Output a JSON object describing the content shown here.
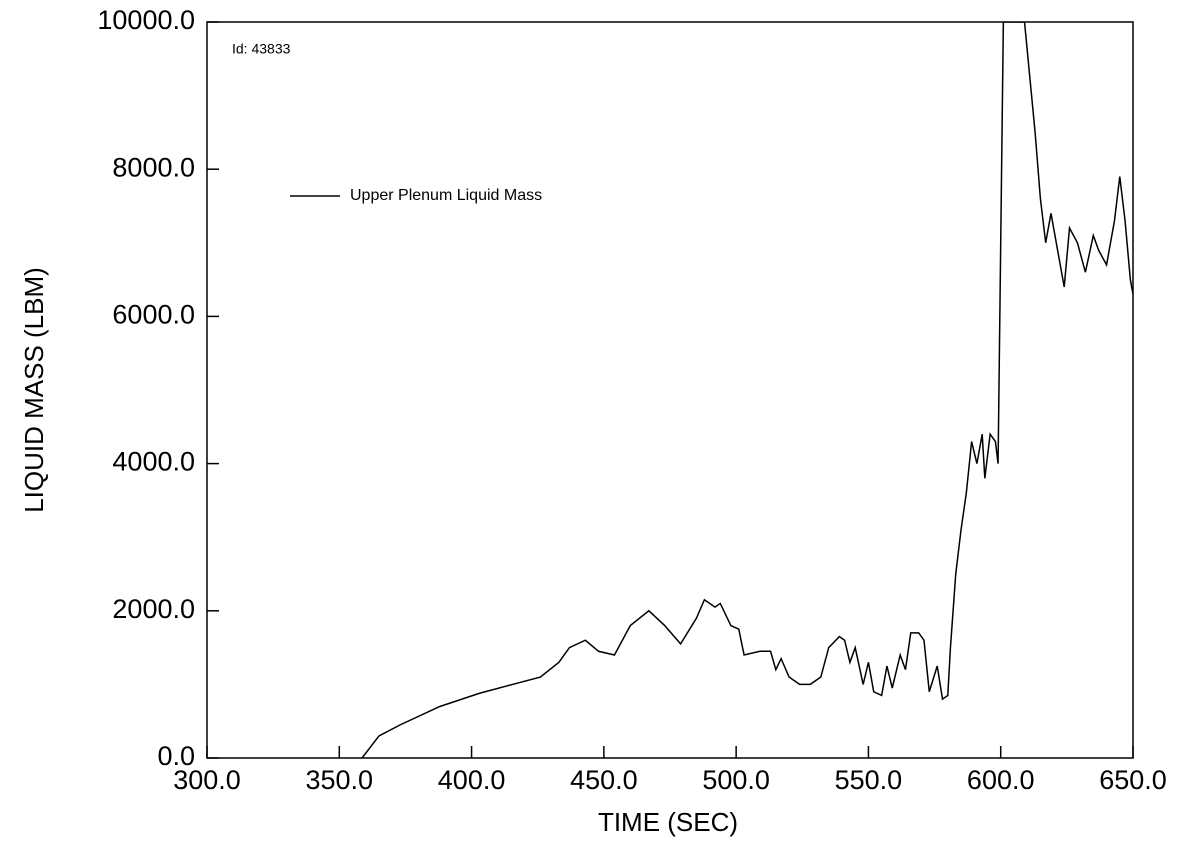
{
  "chart_data": {
    "type": "line",
    "annotation": "Id: 43833",
    "xlabel": "TIME (SEC)",
    "ylabel": "LIQUID MASS (LBM)",
    "legend": "upper left",
    "xlim": [
      300,
      650
    ],
    "ylim": [
      0,
      10000
    ],
    "xticks": [
      {
        "value": 300,
        "label": "300.0"
      },
      {
        "value": 350,
        "label": "350.0"
      },
      {
        "value": 400,
        "label": "400.0"
      },
      {
        "value": 450,
        "label": "450.0"
      },
      {
        "value": 500,
        "label": "500.0"
      },
      {
        "value": 550,
        "label": "550.0"
      },
      {
        "value": 600,
        "label": "600.0"
      },
      {
        "value": 650,
        "label": "650.0"
      }
    ],
    "yticks": [
      {
        "value": 0,
        "label": "0.0"
      },
      {
        "value": 2000,
        "label": "2000.0"
      },
      {
        "value": 4000,
        "label": "4000.0"
      },
      {
        "value": 6000,
        "label": "6000.0"
      },
      {
        "value": 8000,
        "label": "8000.0"
      },
      {
        "value": 10000,
        "label": "10000.0"
      }
    ],
    "x": [
      358.6,
      365,
      373,
      388,
      403,
      426,
      433,
      437,
      443,
      448,
      454,
      460,
      467,
      473,
      479,
      485,
      488,
      492,
      494,
      498,
      501,
      503,
      509,
      513,
      515,
      517,
      520,
      524,
      528,
      532,
      535,
      539,
      541,
      543,
      545,
      548,
      550,
      552,
      555,
      557,
      559,
      562,
      564,
      566,
      569,
      571,
      573,
      576,
      578,
      580,
      581,
      583,
      585,
      587,
      589,
      591,
      593,
      594,
      596,
      598,
      599,
      601,
      609,
      613,
      615,
      617,
      619,
      622,
      624,
      626,
      629,
      632,
      635,
      637,
      640,
      643,
      645,
      647,
      649,
      650
    ],
    "series": [
      {
        "name": "Upper Plenum Liquid Mass",
        "color": "#000000",
        "values": [
          0,
          300,
          450,
          700,
          880,
          1100,
          1300,
          1500,
          1600,
          1450,
          1400,
          1800,
          2000,
          1800,
          1550,
          1900,
          2150,
          2050,
          2100,
          1800,
          1750,
          1400,
          1450,
          1450,
          1200,
          1350,
          1100,
          1000,
          1000,
          1100,
          1500,
          1650,
          1600,
          1300,
          1500,
          1000,
          1300,
          900,
          850,
          1250,
          950,
          1400,
          1200,
          1700,
          1700,
          1600,
          900,
          1250,
          800,
          850,
          1500,
          2500,
          3100,
          3600,
          4300,
          4000,
          4400,
          3800,
          4400,
          4300,
          4000,
          10000,
          10000,
          8500,
          7600,
          7000,
          7400,
          6800,
          6400,
          7200,
          7000,
          6600,
          7100,
          6900,
          6700,
          7300,
          7900,
          7300,
          6500,
          6300
        ]
      }
    ]
  }
}
